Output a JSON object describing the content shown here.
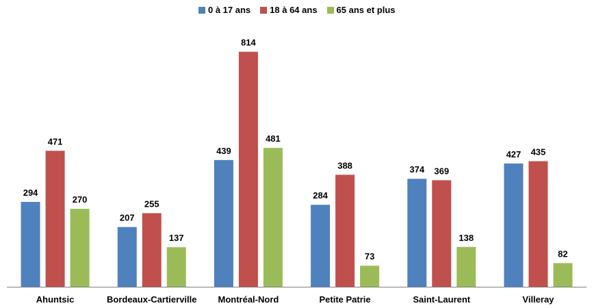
{
  "chart_data": {
    "type": "bar",
    "categories": [
      "Ahuntsic",
      "Bordeaux-Cartierville",
      "Montréal-Nord",
      "Petite Patrie",
      "Saint-Laurent",
      "Villeray"
    ],
    "series": [
      {
        "name": "0 à 17 ans",
        "color": "#4F81BD",
        "values": [
          294,
          207,
          439,
          284,
          374,
          427
        ]
      },
      {
        "name": "18 à 64 ans",
        "color": "#C0504D",
        "values": [
          471,
          255,
          814,
          388,
          369,
          435
        ]
      },
      {
        "name": "65 ans et plus",
        "color": "#9BBB59",
        "values": [
          270,
          137,
          481,
          73,
          138,
          82
        ]
      }
    ],
    "ylim": [
      0,
      870
    ],
    "grid": false,
    "legend_position": "top",
    "data_labels": true
  }
}
